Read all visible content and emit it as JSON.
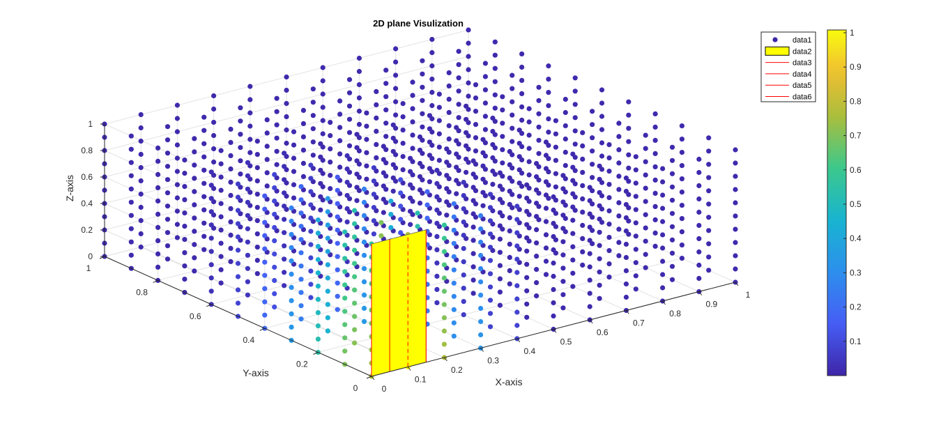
{
  "chart_data": {
    "type": "scatter",
    "title": "2D plane Visulization",
    "xlabel": "X-axis",
    "ylabel": "Y-axis",
    "zlabel": "Z-axis",
    "xlim": [
      0,
      1
    ],
    "ylim": [
      0,
      1
    ],
    "zlim": [
      0,
      1
    ],
    "x_ticks": [
      "0",
      "0.1",
      "0.2",
      "0.3",
      "0.4",
      "0.5",
      "0.6",
      "0.7",
      "0.8",
      "0.9",
      "1"
    ],
    "y_ticks": [
      "0",
      "0.2",
      "0.4",
      "0.6",
      "0.8",
      "1"
    ],
    "z_ticks": [
      "0",
      "0.2",
      "0.4",
      "0.6",
      "0.8",
      "1"
    ],
    "grid": true,
    "grid_points": {
      "x": [
        0,
        0.1,
        0.2,
        0.3,
        0.4,
        0.5,
        0.6,
        0.7,
        0.8,
        0.9,
        1
      ],
      "y": [
        0,
        0.1,
        0.2,
        0.3,
        0.4,
        0.5,
        0.6,
        0.7,
        0.8,
        0.9,
        1
      ],
      "z": [
        0,
        0.1,
        0.2,
        0.3,
        0.4,
        0.5,
        0.6,
        0.7,
        0.8,
        0.9,
        1
      ]
    },
    "series": [
      {
        "name": "data1",
        "kind": "scatter",
        "color_by": "value"
      },
      {
        "name": "data2",
        "kind": "patch",
        "color": "#ffff00",
        "x": [
          0.1,
          0.1
        ],
        "y": [
          0,
          0
        ],
        "z": [
          0,
          1
        ]
      },
      {
        "name": "data3",
        "kind": "line",
        "color": "#ff0000"
      },
      {
        "name": "data4",
        "kind": "line",
        "color": "#ff0000"
      },
      {
        "name": "data5",
        "kind": "line",
        "color": "#ff0000"
      },
      {
        "name": "data6",
        "kind": "line",
        "color": "#ff0000"
      }
    ],
    "legend": {
      "placement": "top-right",
      "entries": [
        "data1",
        "data2",
        "data3",
        "data4",
        "data5",
        "data6"
      ]
    },
    "colorbar": {
      "placement": "right",
      "min": 0,
      "max": 1,
      "ticks": [
        "0.1",
        "0.2",
        "0.3",
        "0.4",
        "0.5",
        "0.6",
        "0.7",
        "0.8",
        "0.9",
        "1"
      ],
      "colormap": "parula"
    },
    "colors": {
      "low": "#3e26a8",
      "high": "#f9fb0e",
      "patch": "#ffff00",
      "lines": "#ff0000"
    }
  }
}
